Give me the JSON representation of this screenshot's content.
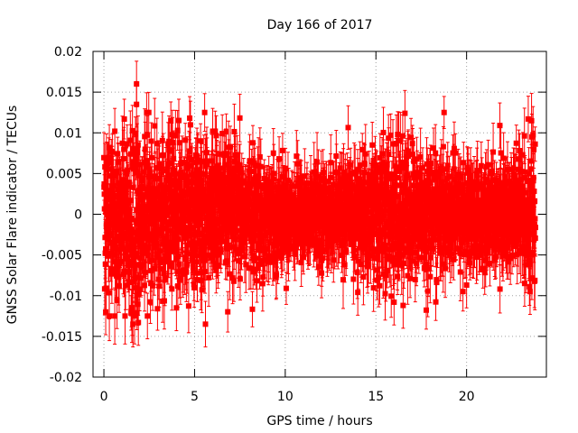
{
  "chart_data": {
    "type": "scatter",
    "title": "Day 166 of 2017",
    "xlabel": "GPS time / hours",
    "ylabel": "GNSS Solar Flare indicator / TECUs",
    "xlim": [
      -0.6,
      24.4
    ],
    "ylim": [
      -0.02,
      0.02
    ],
    "grid": true,
    "x_ticks": [
      0,
      5,
      10,
      15,
      20
    ],
    "x_tick_labels": [
      "0",
      "5",
      "10",
      "15",
      "20"
    ],
    "y_ticks": [
      0.02,
      0.015,
      0.01,
      0.005,
      0,
      -0.005,
      -0.01,
      -0.015,
      -0.02
    ],
    "y_tick_labels": [
      "0.02",
      "0.015",
      "0.01",
      "0.005",
      "0",
      "-0.005",
      "-0.01",
      "-0.015",
      "-0.02"
    ],
    "series": [
      {
        "name": "GNSS Solar Flare indicator",
        "color": "#ff0000",
        "marker": "square",
        "error_bars": true,
        "x_range": [
          0,
          23.8
        ],
        "sampling_interval_hours": 0.00833,
        "typical_error": 0.0028,
        "noise_envelope": [
          {
            "x": 0,
            "std": 0.005
          },
          {
            "x": 2,
            "std": 0.0052
          },
          {
            "x": 5,
            "std": 0.0046
          },
          {
            "x": 8,
            "std": 0.0036
          },
          {
            "x": 10,
            "std": 0.0027
          },
          {
            "x": 12,
            "std": 0.0024
          },
          {
            "x": 13.5,
            "std": 0.003
          },
          {
            "x": 15,
            "std": 0.004
          },
          {
            "x": 17,
            "std": 0.0042
          },
          {
            "x": 19,
            "std": 0.0032
          },
          {
            "x": 21,
            "std": 0.0028
          },
          {
            "x": 23,
            "std": 0.004
          },
          {
            "x": 23.8,
            "std": 0.0038
          }
        ],
        "highlighted_points": [
          {
            "x": 1.8,
            "y": 0.016
          },
          {
            "x": 1.8,
            "y": 0.0135
          },
          {
            "x": 0.1,
            "y": -0.012
          },
          {
            "x": 1.6,
            "y": -0.0135
          },
          {
            "x": 1.9,
            "y": -0.0133
          },
          {
            "x": 2.4,
            "y": -0.0125
          },
          {
            "x": 5.6,
            "y": -0.0135
          },
          {
            "x": 4.0,
            "y": -0.0115
          },
          {
            "x": 0.6,
            "y": 0.0102
          },
          {
            "x": 16.6,
            "y": 0.0124
          },
          {
            "x": 23.4,
            "y": 0.0117
          },
          {
            "x": 23.6,
            "y": 0.0095
          },
          {
            "x": 16.5,
            "y": -0.0112
          },
          {
            "x": 16.0,
            "y": -0.0108
          },
          {
            "x": 20.0,
            "y": -0.0087
          },
          {
            "x": 14.0,
            "y": -0.0096
          },
          {
            "x": 23.5,
            "y": -0.0095
          },
          {
            "x": 23.2,
            "y": -0.0085
          },
          {
            "x": 6.0,
            "y": 0.0102
          },
          {
            "x": 0.3,
            "y": 0.0082
          },
          {
            "x": 14.8,
            "y": 0.0085
          },
          {
            "x": 16.2,
            "y": 0.0098
          }
        ]
      }
    ]
  }
}
